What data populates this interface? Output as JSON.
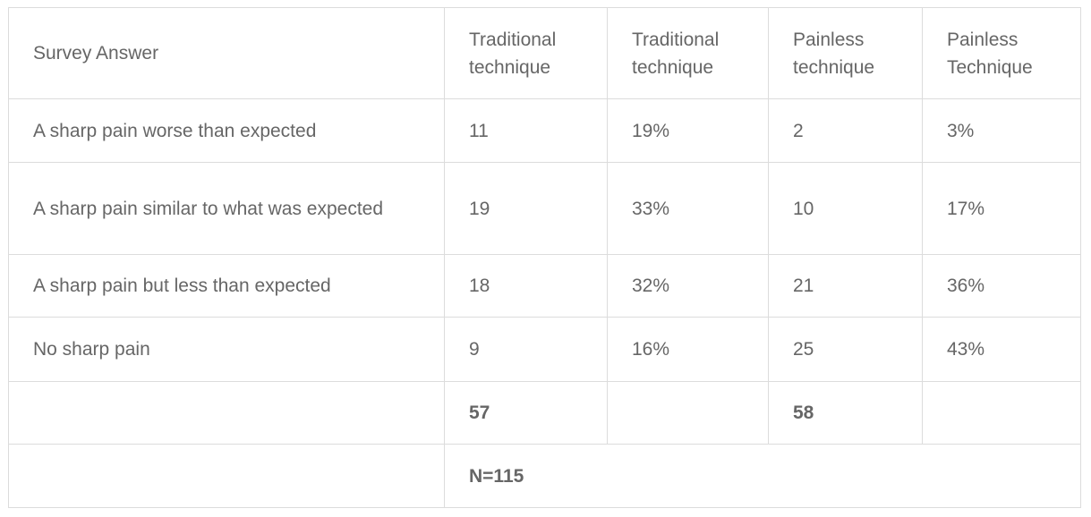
{
  "table": {
    "header": [
      "Survey Answer",
      "Traditional technique",
      "Traditional technique",
      "Painless technique",
      "Painless Technique"
    ],
    "rows": [
      [
        "A sharp pain worse than expected",
        "11",
        "19%",
        "2",
        "3%"
      ],
      [
        "A sharp pain similar to what was expected",
        "19",
        "33%",
        "10",
        "17%"
      ],
      [
        "A sharp pain but less than expected",
        "18",
        "32%",
        "21",
        "36%"
      ],
      [
        "No sharp pain",
        "9",
        "16%",
        "25",
        "43%"
      ]
    ],
    "totals": {
      "traditional": "57",
      "painless": "58"
    },
    "n_total": "N=115"
  }
}
